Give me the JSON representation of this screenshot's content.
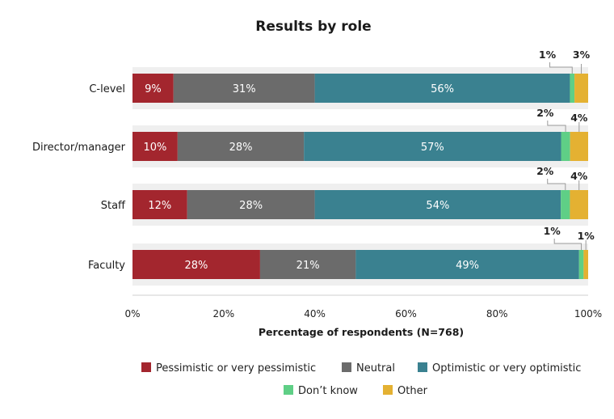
{
  "chart_data": {
    "type": "bar",
    "orientation": "horizontal",
    "stacked": true,
    "title": "Results by role",
    "xlabel": "Percentage of respondents (N=768)",
    "ylabel": "",
    "xlim": [
      0,
      100
    ],
    "x_ticks": [
      "0%",
      "20%",
      "40%",
      "60%",
      "80%",
      "100%"
    ],
    "categories": [
      "C-level",
      "Director/manager",
      "Staff",
      "Faculty"
    ],
    "series": [
      {
        "name": "Pessimistic or very pessimistic",
        "color": "#a3262e",
        "values": [
          9,
          10,
          12,
          28
        ],
        "labels": [
          "9%",
          "10%",
          "12%",
          "28%"
        ]
      },
      {
        "name": "Neutral",
        "color": "#6b6b6b",
        "values": [
          31,
          28,
          28,
          21
        ],
        "labels": [
          "31%",
          "28%",
          "28%",
          "21%"
        ]
      },
      {
        "name": "Optimistic or very optimistic",
        "color": "#3a8190",
        "values": [
          56,
          57,
          54,
          49
        ],
        "labels": [
          "56%",
          "57%",
          "54%",
          "49%"
        ]
      },
      {
        "name": "Don’t know",
        "color": "#5fcf86",
        "values": [
          1,
          2,
          2,
          1
        ],
        "labels": [
          "1%",
          "2%",
          "2%",
          "1%"
        ]
      },
      {
        "name": "Other",
        "color": "#e4b132",
        "values": [
          3,
          4,
          4,
          1
        ],
        "labels": [
          "3%",
          "4%",
          "4%",
          "1%"
        ]
      }
    ],
    "grid": false,
    "legend_position": "bottom"
  }
}
